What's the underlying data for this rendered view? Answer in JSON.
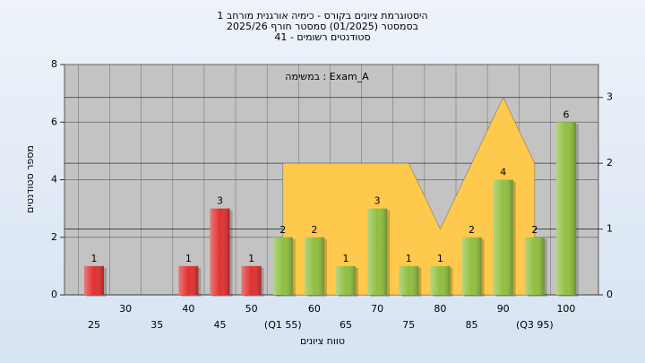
{
  "chart_data": {
    "type": "bar",
    "title": [
      "היסטוגרמת ציונים בקורס - כימיה אורגנית מורחב 1",
      "בסמסטר (01/2025) סמסטר חורף 2025/26",
      "סטודנטים רשומים - 41"
    ],
    "x_label": "טווח ציונים",
    "y_label": "מספר סטודנטים",
    "categories": [
      "25",
      "30",
      "35",
      "40",
      "45",
      "50",
      "(Q1 55)",
      "60",
      "65",
      "70",
      "75",
      "80",
      "85",
      "90",
      "(Q3 95)",
      "100"
    ],
    "series": [
      {
        "name": "Exam_A : במשימה",
        "values": [
          1,
          0,
          0,
          1,
          3,
          1,
          2,
          2,
          1,
          3,
          1,
          1,
          2,
          4,
          2,
          6
        ],
        "colors": [
          "#e03030",
          "#e03030",
          "#e03030",
          "#e03030",
          "#e03030",
          "#e03030",
          "#8fbf40",
          "#8fbf40",
          "#8fbf40",
          "#8fbf40",
          "#8fbf40",
          "#8fbf40",
          "#8fbf40",
          "#8fbf40",
          "#8fbf40",
          "#8fbf40"
        ]
      },
      {
        "type": "area",
        "axis": "y2",
        "color": "#ffc94d",
        "values": [
          null,
          null,
          null,
          null,
          null,
          null,
          2,
          2,
          2,
          2,
          2,
          1,
          2,
          3,
          2,
          null
        ]
      }
    ],
    "ylim": [
      0,
      8
    ],
    "yticks": [
      0,
      2,
      4,
      6,
      8
    ],
    "y2lim": [
      0,
      3.5
    ],
    "y2ticks": [
      0,
      1,
      2,
      3
    ],
    "grid": true
  }
}
